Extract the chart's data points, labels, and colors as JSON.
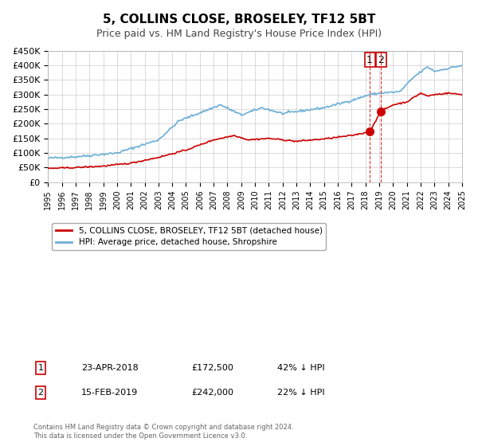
{
  "title": "5, COLLINS CLOSE, BROSELEY, TF12 5BT",
  "subtitle": "Price paid vs. HM Land Registry's House Price Index (HPI)",
  "xlabel": "",
  "ylabel": "",
  "ylim": [
    0,
    450000
  ],
  "xlim_start": 1995,
  "xlim_end": 2025,
  "yticks": [
    0,
    50000,
    100000,
    150000,
    200000,
    250000,
    300000,
    350000,
    400000,
    450000
  ],
  "ytick_labels": [
    "£0",
    "£50K",
    "£100K",
    "£150K",
    "£200K",
    "£250K",
    "£300K",
    "£350K",
    "£400K",
    "£450K"
  ],
  "hpi_color": "#6baed6",
  "price_color": "#cc0000",
  "marker_color": "#cc0000",
  "vline_color": "#cc0000",
  "legend_label_price": "5, COLLINS CLOSE, BROSELEY, TF12 5BT (detached house)",
  "legend_label_hpi": "HPI: Average price, detached house, Shropshire",
  "transaction1_label": "1",
  "transaction1_date": "23-APR-2018",
  "transaction1_price": "£172,500",
  "transaction1_hpi": "42% ↓ HPI",
  "transaction1_x": 2018.31,
  "transaction1_y": 172500,
  "transaction2_label": "2",
  "transaction2_date": "15-FEB-2019",
  "transaction2_price": "£242,000",
  "transaction2_hpi": "22% ↓ HPI",
  "transaction2_x": 2019.12,
  "transaction2_y": 242000,
  "vline_x1": 2018.31,
  "vline_x2": 2019.12,
  "footer_text": "Contains HM Land Registry data © Crown copyright and database right 2024.\nThis data is licensed under the Open Government Licence v3.0.",
  "background_color": "#ffffff",
  "plot_background_color": "#ffffff",
  "grid_color": "#cccccc"
}
